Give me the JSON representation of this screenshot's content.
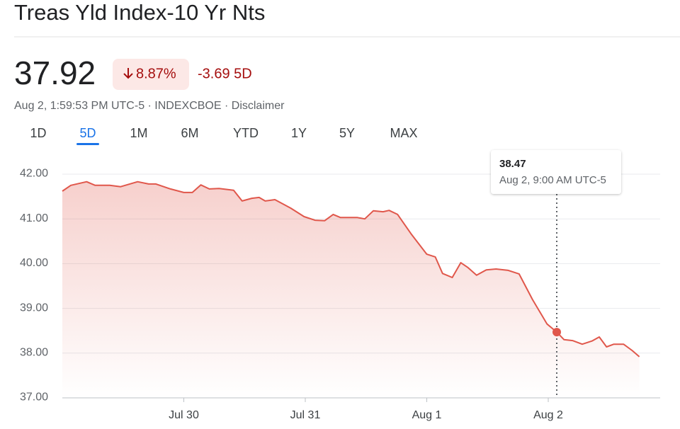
{
  "header": {
    "title": "Treas Yld Index-10 Yr Nts",
    "price": "37.92",
    "change_pct": "8.87%",
    "change": "-3.69 5D",
    "meta": "Aug 2, 1:59:53 PM UTC-5 · INDEXCBOE · Disclaimer"
  },
  "tabs": [
    "1D",
    "5D",
    "1M",
    "6M",
    "YTD",
    "1Y",
    "5Y",
    "MAX"
  ],
  "selected_tab": 1,
  "chart_data": {
    "type": "area",
    "color": "#e0574b",
    "grid": true,
    "x": [
      0,
      0.07,
      0.2,
      0.27,
      0.39,
      0.48,
      0.62,
      0.71,
      0.77,
      0.89,
      1.0,
      1.07,
      1.14,
      1.21,
      1.29,
      1.41,
      1.48,
      1.56,
      1.62,
      1.67,
      1.75,
      1.88,
      1.99,
      2.08,
      2.16,
      2.23,
      2.29,
      2.43,
      2.49,
      2.56,
      2.64,
      2.69,
      2.76,
      2.87,
      3.0,
      3.07,
      3.13,
      3.21,
      3.28,
      3.34,
      3.41,
      3.49,
      3.57,
      3.67,
      3.76,
      3.87,
      3.99,
      4.07,
      4.13,
      4.2,
      4.28,
      4.36,
      4.42,
      4.48,
      4.54,
      4.62,
      4.69,
      4.75
    ],
    "values": [
      41.62,
      41.75,
      41.83,
      41.75,
      41.75,
      41.72,
      41.83,
      41.78,
      41.78,
      41.67,
      41.59,
      41.59,
      41.76,
      41.67,
      41.68,
      41.64,
      41.4,
      41.46,
      41.48,
      41.4,
      41.43,
      41.24,
      41.05,
      40.97,
      40.96,
      41.1,
      41.03,
      41.03,
      41.0,
      41.18,
      41.16,
      41.19,
      41.1,
      40.67,
      40.21,
      40.15,
      39.78,
      39.69,
      40.02,
      39.91,
      39.74,
      39.86,
      39.88,
      39.85,
      39.77,
      39.2,
      38.65,
      38.47,
      38.3,
      38.28,
      38.2,
      38.27,
      38.36,
      38.14,
      38.2,
      38.2,
      38.06,
      37.92
    ],
    "xlim": [
      0,
      4.92
    ],
    "ylim": [
      37,
      42
    ],
    "xticks": [
      {
        "value": 1,
        "label": "Jul 30"
      },
      {
        "value": 2,
        "label": "Jul 31"
      },
      {
        "value": 3,
        "label": "Aug 1"
      },
      {
        "value": 4,
        "label": "Aug 2"
      }
    ],
    "yticks": [
      {
        "value": 37,
        "label": "37.00"
      },
      {
        "value": 38,
        "label": "38.00"
      },
      {
        "value": 39,
        "label": "39.00"
      },
      {
        "value": 40,
        "label": "40.00"
      },
      {
        "value": 41,
        "label": "41.00"
      },
      {
        "value": 42,
        "label": "42.00"
      }
    ],
    "highlight": {
      "x": 4.07,
      "y": 38.47,
      "label": "Aug 2, 9:00 AM UTC-5"
    }
  }
}
